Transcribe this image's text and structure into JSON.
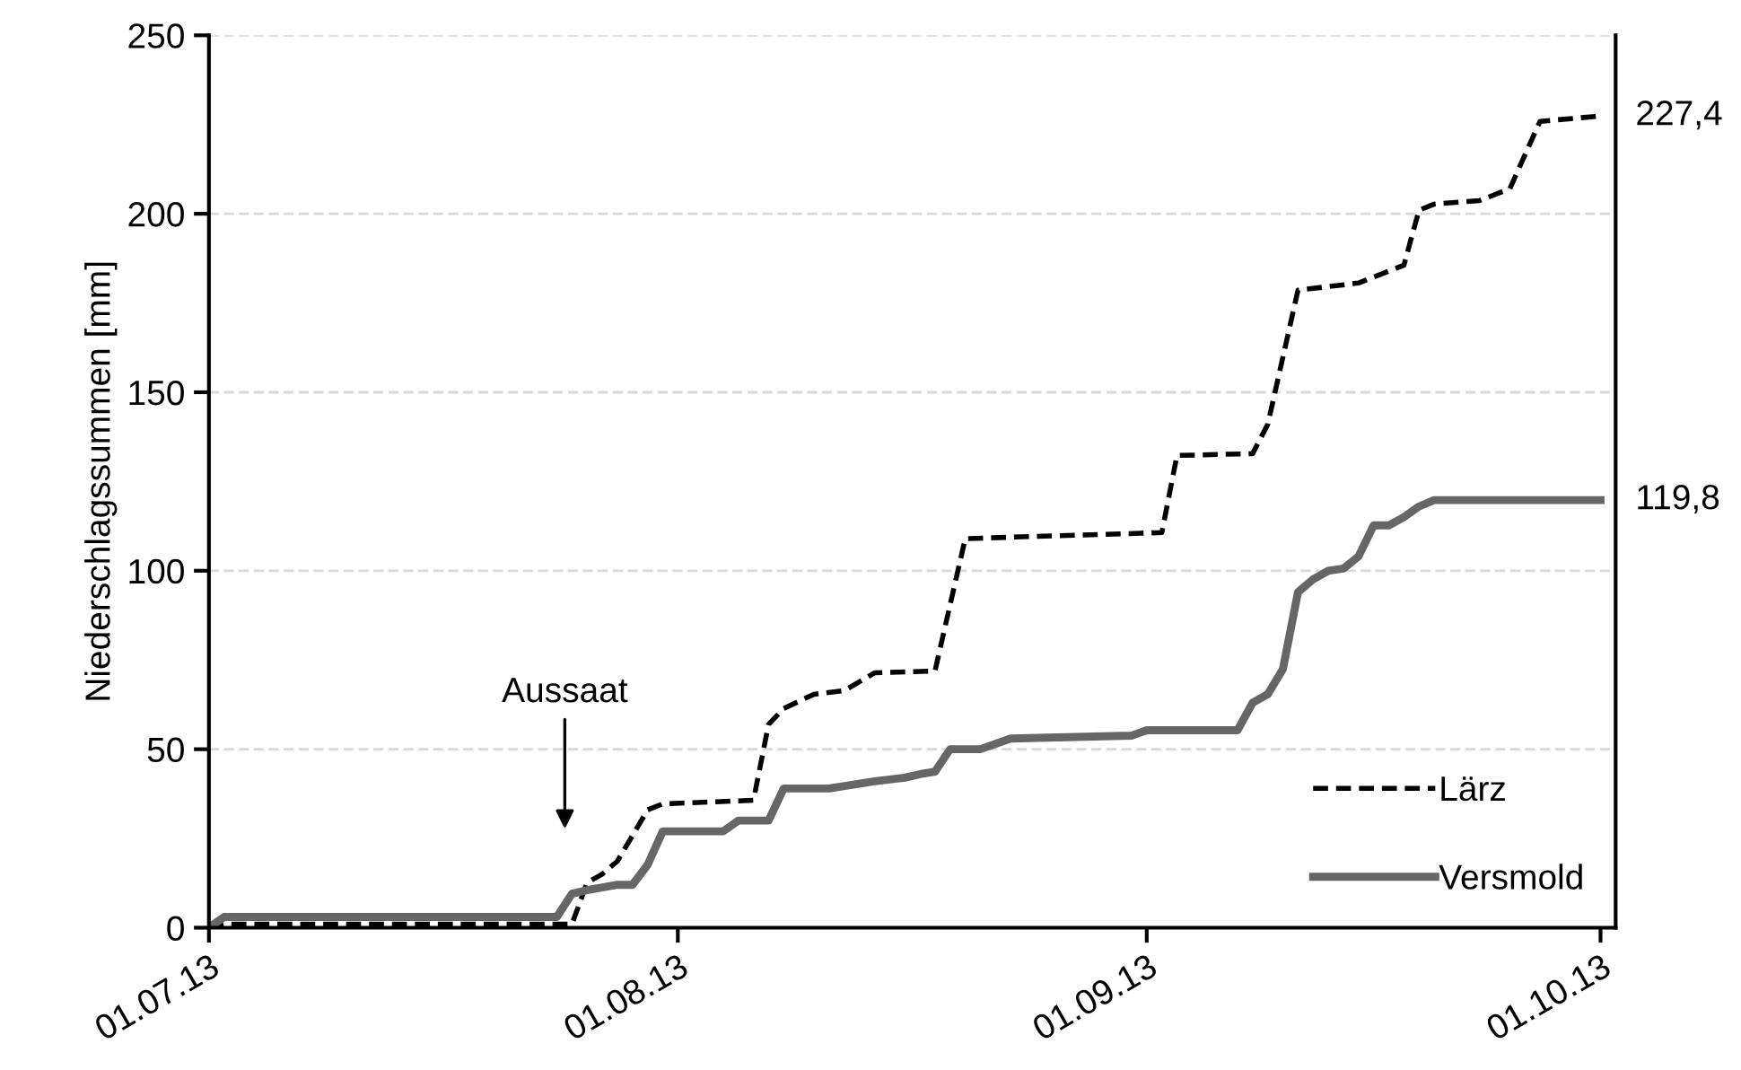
{
  "chart_data": {
    "type": "line",
    "ylabel": "Niederschlagssummen [mm]",
    "xlim": [
      "2013-07-01",
      "2013-10-02"
    ],
    "xticks": [
      {
        "value": "2013-07-01",
        "label": "01.07.13"
      },
      {
        "value": "2013-08-01",
        "label": "01.08.13"
      },
      {
        "value": "2013-09-01",
        "label": "01.09.13"
      },
      {
        "value": "2013-10-01",
        "label": "01.10.13"
      }
    ],
    "ylim": [
      0,
      250
    ],
    "yticks": [
      0,
      50,
      100,
      150,
      200,
      250
    ],
    "grid": "y",
    "legend": "bottom right",
    "annotations": [
      "Aussaat"
    ],
    "series": [
      {
        "name": "Lärz",
        "color": "#000000",
        "line_style": "dashed",
        "x": [
          "2013-07-01",
          "2013-07-02",
          "2013-07-25",
          "2013-07-26",
          "2013-07-27",
          "2013-07-28",
          "2013-07-30",
          "2013-07-31",
          "2013-08-06",
          "2013-08-07",
          "2013-08-08",
          "2013-08-10",
          "2013-08-12",
          "2013-08-14",
          "2013-08-18",
          "2013-08-20",
          "2013-09-02",
          "2013-09-03",
          "2013-09-08",
          "2013-09-09",
          "2013-09-11",
          "2013-09-15",
          "2013-09-18",
          "2013-09-19",
          "2013-09-20",
          "2013-09-23",
          "2013-09-25",
          "2013-09-27",
          "2013-10-01"
        ],
        "values": [
          0,
          1,
          1,
          12.6,
          15,
          18.6,
          33,
          34.7,
          35.7,
          57,
          61.4,
          65.4,
          66.4,
          71.4,
          71.9,
          109,
          110.7,
          132.3,
          132.8,
          141,
          178.6,
          180.6,
          185.6,
          201,
          202.7,
          203.7,
          207,
          225.9,
          227.4
        ],
        "value_labels": [
          null,
          null,
          null,
          null,
          null,
          null,
          null,
          null,
          null,
          null,
          null,
          null,
          null,
          null,
          null,
          null,
          null,
          null,
          null,
          null,
          null,
          null,
          null,
          null,
          null,
          null,
          null,
          null,
          "227,4"
        ]
      },
      {
        "name": "Versmold",
        "color": "#666666",
        "line_style": "solid",
        "x": [
          "2013-07-01",
          "2013-07-02",
          "2013-07-24",
          "2013-07-25",
          "2013-07-26",
          "2013-07-28",
          "2013-07-29",
          "2013-07-30",
          "2013-07-31",
          "2013-08-04",
          "2013-08-05",
          "2013-08-07",
          "2013-08-08",
          "2013-08-11",
          "2013-08-14",
          "2013-08-16",
          "2013-08-17",
          "2013-08-18",
          "2013-08-19",
          "2013-08-21",
          "2013-08-23",
          "2013-08-31",
          "2013-09-01",
          "2013-09-07",
          "2013-09-08",
          "2013-09-09",
          "2013-09-10",
          "2013-09-11",
          "2013-09-12",
          "2013-09-13",
          "2013-09-14",
          "2013-09-15",
          "2013-09-16",
          "2013-09-17",
          "2013-09-18",
          "2013-09-19",
          "2013-09-20",
          "2013-10-01"
        ],
        "values": [
          0,
          3,
          3,
          9.5,
          10.5,
          12,
          12,
          17.6,
          27,
          27,
          30,
          30,
          39,
          39,
          41,
          42,
          43,
          43.7,
          50,
          50,
          53,
          53.8,
          55.3,
          55.3,
          63,
          65.4,
          72.4,
          94,
          97.6,
          100,
          100.6,
          104,
          112.7,
          112.7,
          115,
          118,
          119.8,
          119.8
        ],
        "value_labels": [
          null,
          null,
          null,
          null,
          null,
          null,
          null,
          null,
          null,
          null,
          null,
          null,
          null,
          null,
          null,
          null,
          null,
          null,
          null,
          null,
          null,
          null,
          null,
          null,
          null,
          null,
          null,
          null,
          null,
          null,
          null,
          null,
          null,
          null,
          null,
          null,
          null,
          "119,8"
        ]
      }
    ]
  }
}
